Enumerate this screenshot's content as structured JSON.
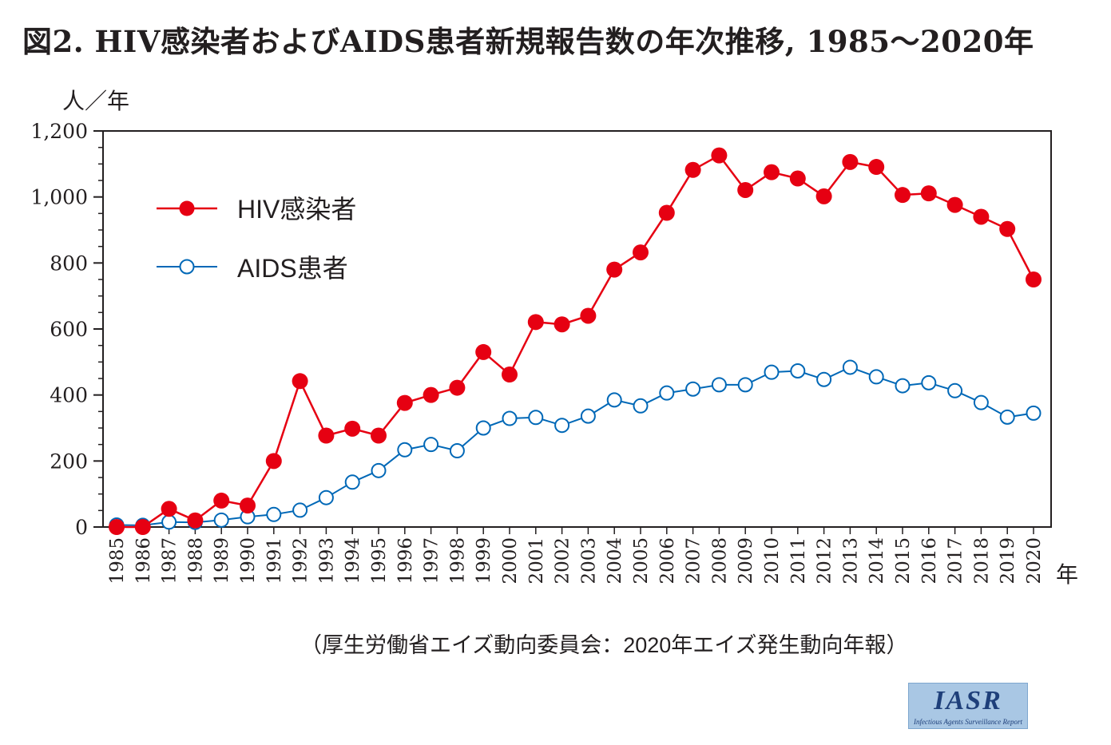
{
  "chart_data": {
    "type": "line",
    "title": "図2. HIV感染者およびAIDS患者新規報告数の年次推移, 1985〜2020年",
    "ylabel": "人／年",
    "xlabel": "年",
    "ylim": [
      0,
      1200
    ],
    "yticks": [
      0,
      200,
      400,
      600,
      800,
      1000,
      1200
    ],
    "ytick_labels": [
      "0",
      "200",
      "400",
      "600",
      "800",
      "1,000",
      "1,200"
    ],
    "x": [
      1985,
      1986,
      1987,
      1988,
      1989,
      1990,
      1991,
      1992,
      1993,
      1994,
      1995,
      1996,
      1997,
      1998,
      1999,
      2000,
      2001,
      2002,
      2003,
      2004,
      2005,
      2006,
      2007,
      2008,
      2009,
      2010,
      2011,
      2012,
      2013,
      2014,
      2015,
      2016,
      2017,
      2018,
      2019,
      2020
    ],
    "series": [
      {
        "name": "HIV感染者",
        "color": "#e60012",
        "marker": "filled-circle",
        "values": [
          0,
          0,
          55,
          20,
          80,
          65,
          200,
          442,
          277,
          298,
          277,
          376,
          400,
          422,
          530,
          462,
          621,
          614,
          640,
          780,
          832,
          952,
          1082,
          1126,
          1021,
          1075,
          1056,
          1002,
          1106,
          1091,
          1006,
          1011,
          976,
          940,
          903,
          750
        ]
      },
      {
        "name": "AIDS患者",
        "color": "#0068b7",
        "marker": "open-circle",
        "values": [
          6,
          5,
          15,
          14,
          21,
          31,
          38,
          51,
          89,
          136,
          171,
          234,
          250,
          231,
          300,
          329,
          332,
          308,
          336,
          385,
          367,
          406,
          418,
          431,
          431,
          469,
          473,
          447,
          484,
          455,
          428,
          437,
          413,
          377,
          333,
          345
        ]
      }
    ],
    "legend_position": "top-left",
    "grid": false
  },
  "source": "（厚生労働省エイズ動向委員会：2020年エイズ発生動向年報）",
  "logo": {
    "name": "IASR",
    "subtitle": "Infectious Agents Surveillance Report"
  }
}
